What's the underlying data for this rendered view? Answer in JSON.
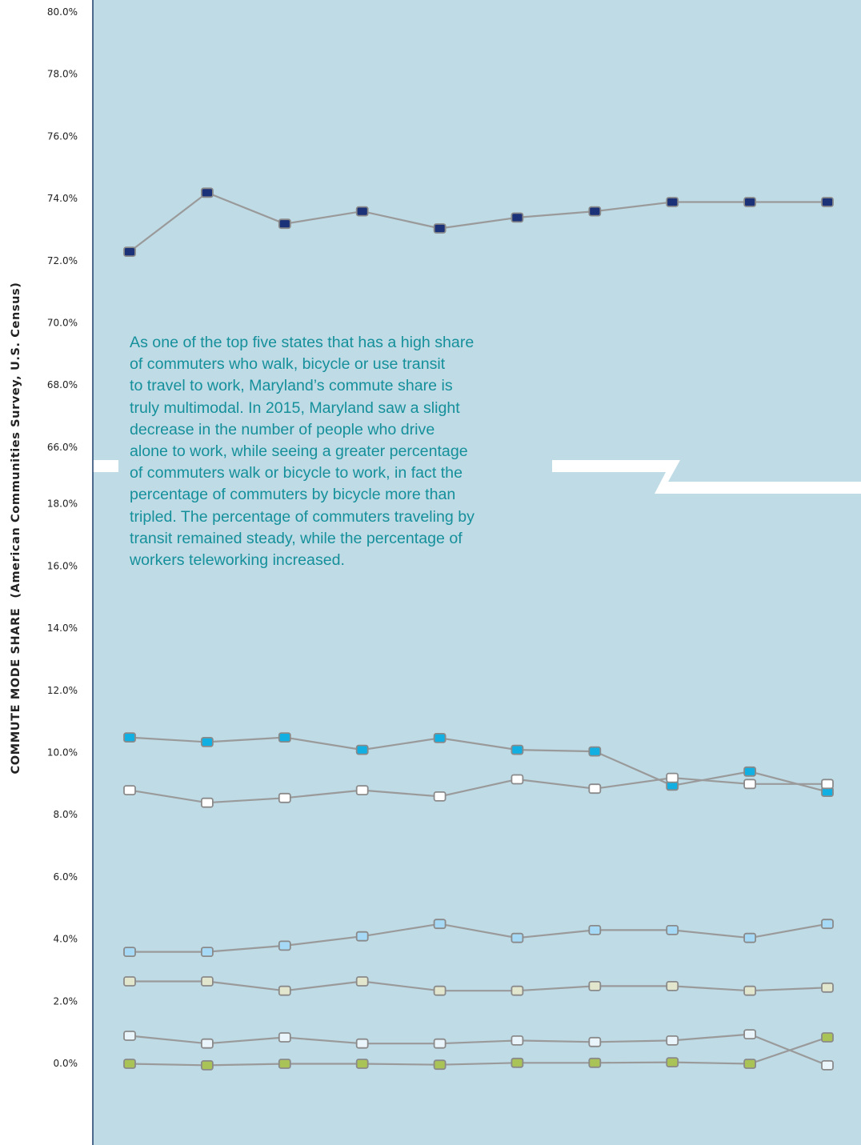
{
  "chart_data": {
    "type": "line",
    "title": "",
    "xlabel": "",
    "ylabel": "COMMUTE MODE SHARE",
    "ylabel_source": "(American Communities Survey, U.S. Census)",
    "y_axis_broken": true,
    "y_ticks_upper": [
      "80.0%",
      "78.0%",
      "76.0%",
      "74.0%",
      "72.0%",
      "70.0%",
      "68.0%",
      "66.0%"
    ],
    "y_ticks_lower": [
      "18.0%",
      "16.0%",
      "14.0%",
      "12.0%",
      "10.0%",
      "8.0%",
      "6.0%",
      "4.0%",
      "2.0%",
      "0.0%"
    ],
    "ylim_upper": [
      66,
      80
    ],
    "ylim_lower": [
      0,
      18
    ],
    "grid": false,
    "legend": "none",
    "colors": {
      "plot_background": "#bfdbe6",
      "axis_line": "#1a3e6a",
      "connector_line": "#9a9a9a",
      "marker_stroke": "#8a8a8a",
      "break_band": "#ffffff",
      "annotation_text": "#15909b"
    },
    "x_count": 10,
    "series": [
      {
        "color": "#1c3278",
        "values": [
          72.3,
          74.2,
          73.2,
          73.6,
          73.05,
          73.4,
          73.6,
          73.9,
          73.9,
          73.9
        ]
      },
      {
        "color": "#12b0e2",
        "values": [
          10.5,
          10.35,
          10.5,
          10.1,
          10.48,
          10.1,
          10.05,
          8.95,
          9.4,
          8.75
        ]
      },
      {
        "color": "#ffffff",
        "values": [
          8.8,
          8.4,
          8.55,
          8.8,
          8.6,
          9.15,
          8.85,
          9.2,
          9.0,
          9.0
        ]
      },
      {
        "color": "#a6d9f5",
        "values": [
          3.6,
          3.6,
          3.8,
          4.1,
          4.5,
          4.05,
          4.3,
          4.3,
          4.05,
          4.5
        ]
      },
      {
        "color": "#e2e6cc",
        "values": [
          2.65,
          2.65,
          2.35,
          2.65,
          2.35,
          2.35,
          2.5,
          2.5,
          2.35,
          2.45
        ]
      },
      {
        "color": "#eaf4fb",
        "values": [
          0.9,
          0.65,
          0.85,
          0.65,
          0.65,
          0.75,
          0.7,
          0.75,
          0.95,
          -0.05
        ]
      },
      {
        "color": "#a9c356",
        "values": [
          0.0,
          -0.05,
          0.0,
          0.0,
          -0.03,
          0.03,
          0.03,
          0.05,
          0.0,
          0.85
        ]
      }
    ],
    "annotation": [
      "As one of the top five states that has a high share",
      "of commuters who walk, bicycle or use transit",
      "to travel to work, Maryland’s commute share is",
      "truly multimodal. In 2015, Maryland saw a slight",
      "decrease in the number of people who drive",
      "alone to work, while seeing a greater percentage",
      "of commuters walk or bicycle to work, in fact the",
      "percentage of commuters by bicycle more than",
      "tripled. The percentage of commuters traveling by",
      "transit remained steady, while the percentage of",
      "workers teleworking increased."
    ]
  }
}
